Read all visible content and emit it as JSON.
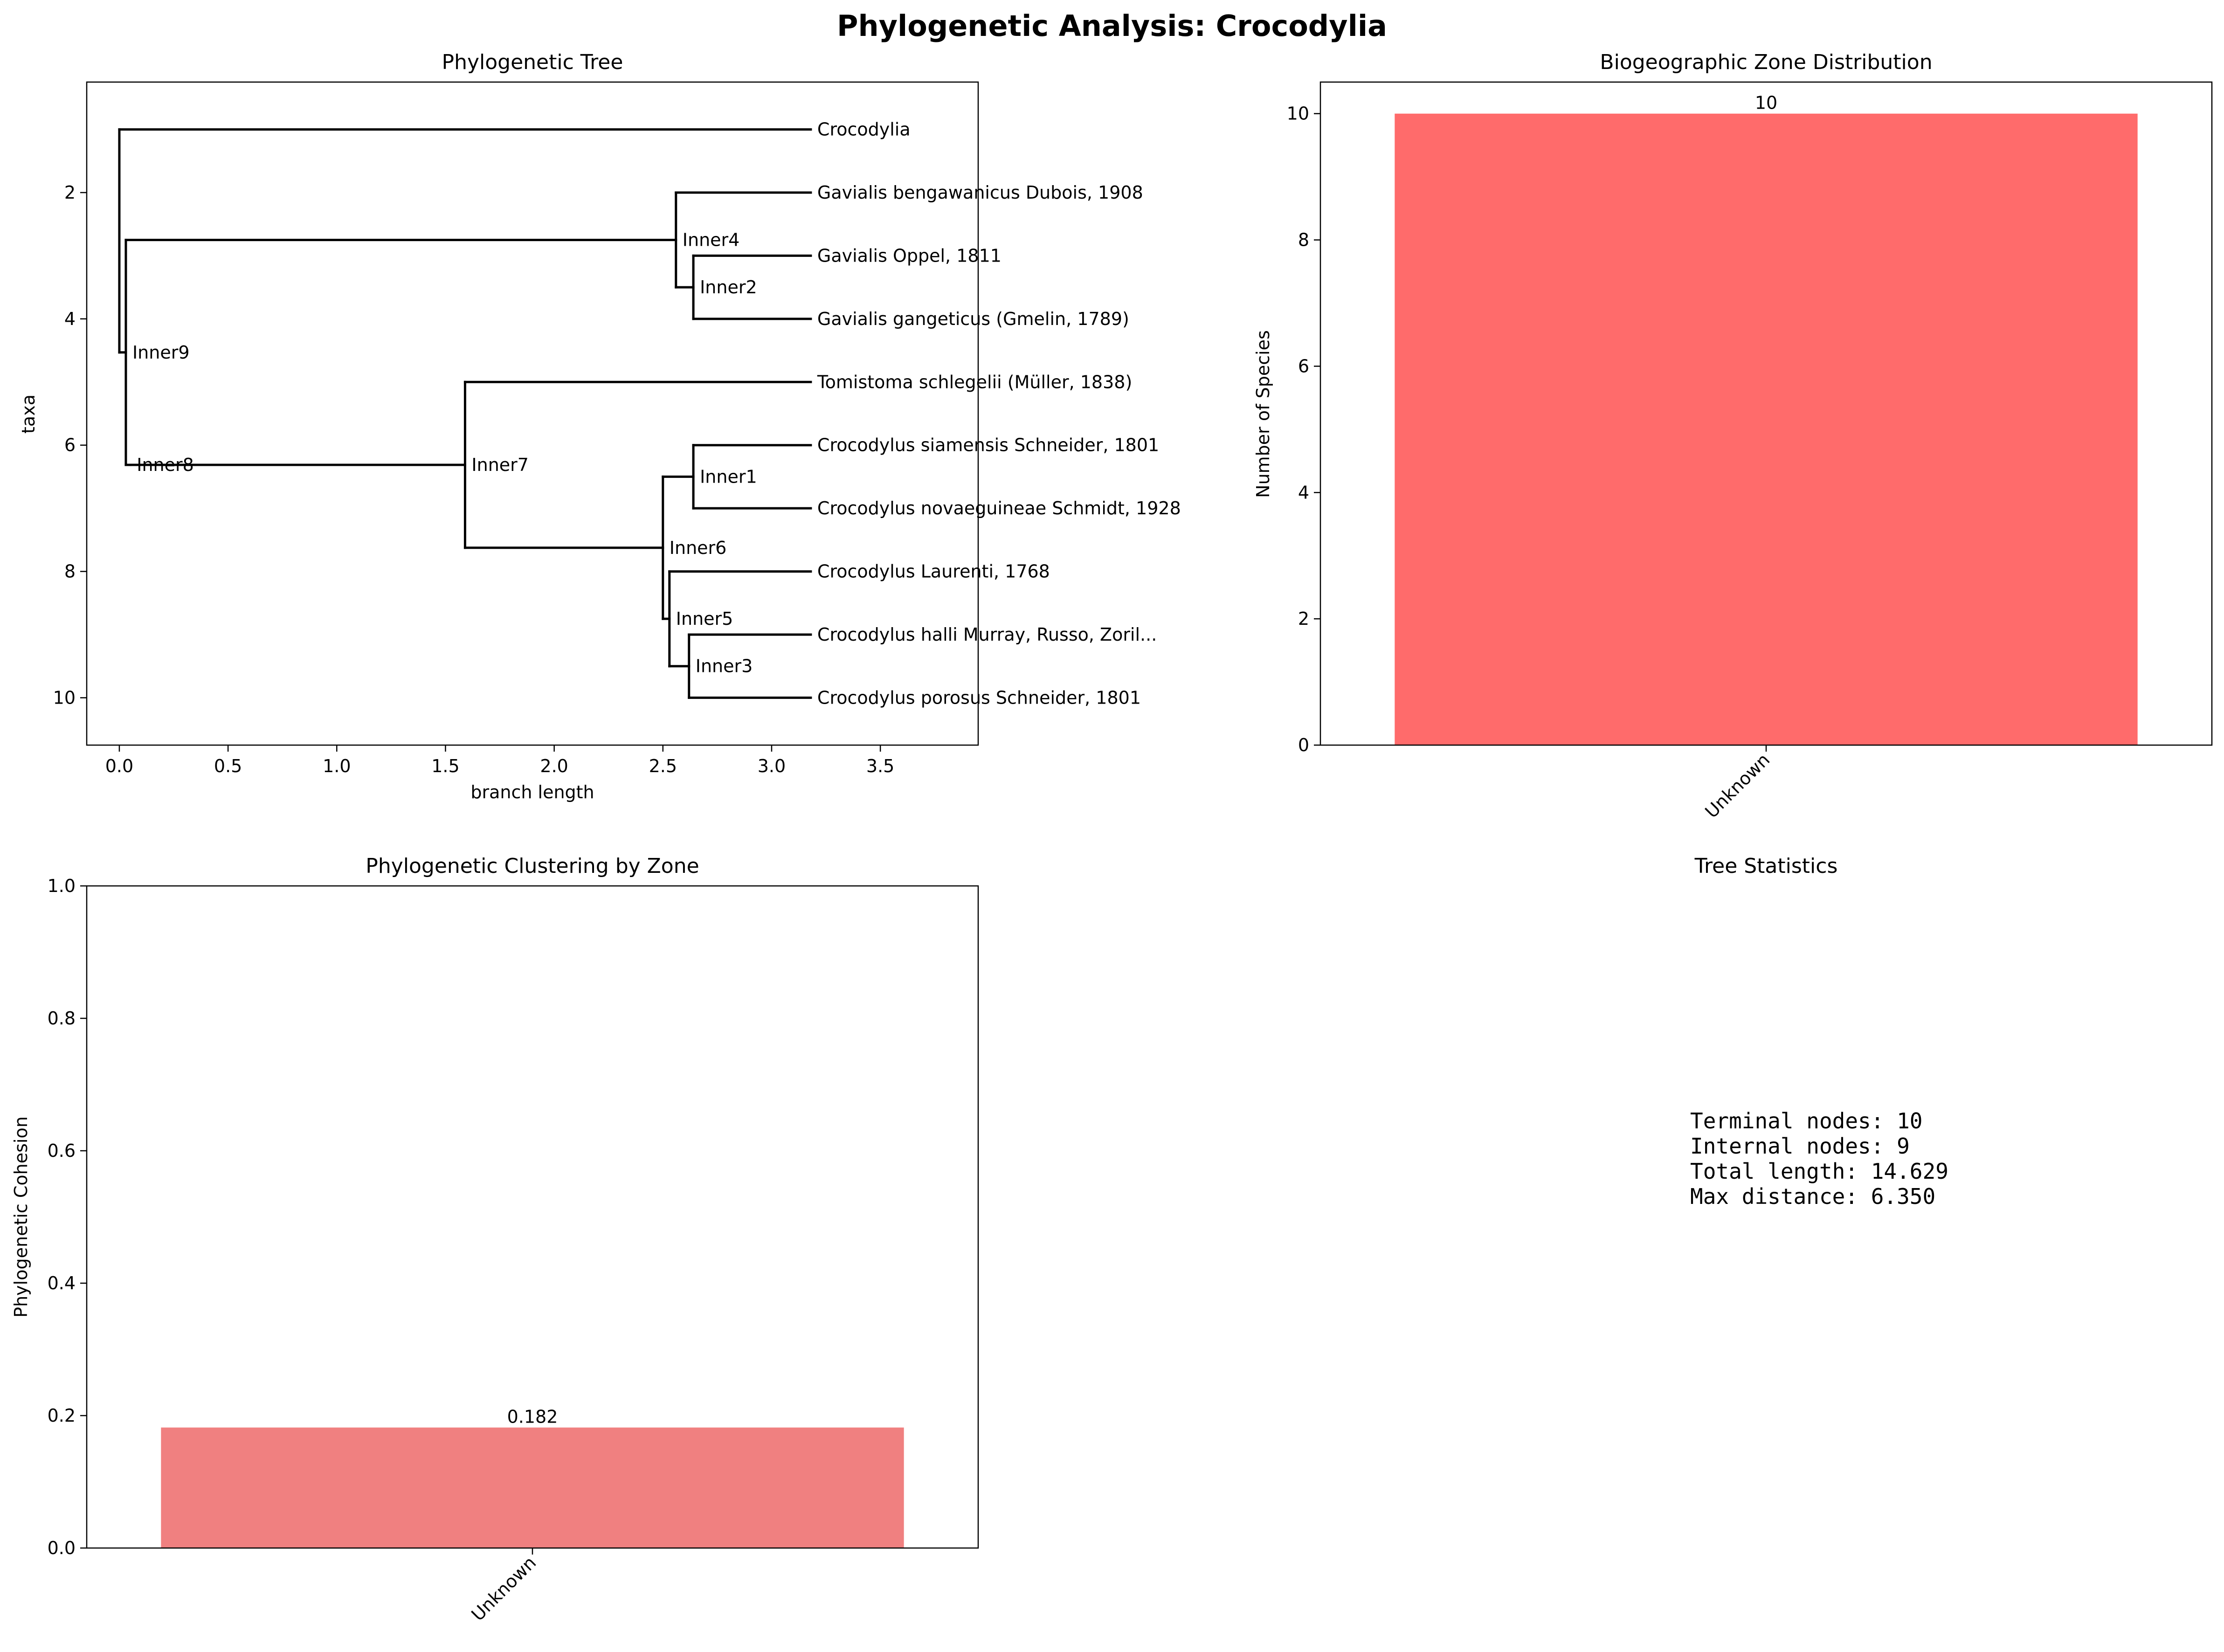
{
  "figure": {
    "title": "Phylogenetic Analysis: Crocodylia"
  },
  "chart_data": [
    {
      "type": "tree",
      "title": "Phylogenetic Tree",
      "xlabel": "branch length",
      "ylabel": "taxa",
      "xlim": [
        -0.15,
        3.95
      ],
      "ylim": [
        10.75,
        0.25
      ],
      "xticks": [
        "0.0",
        "0.5",
        "1.0",
        "1.5",
        "2.0",
        "2.5",
        "3.0",
        "3.5"
      ],
      "yticks": [
        "2",
        "4",
        "6",
        "8",
        "10"
      ],
      "line_color": "#000000",
      "nodes": [
        {
          "id": "root",
          "x": 0.0,
          "y": 0.0,
          "label": ""
        },
        {
          "id": "Inner9",
          "x": 0.03,
          "y": 0.0,
          "label": "Inner9"
        },
        {
          "id": "Inner8",
          "x": 0.05,
          "y": 0.0,
          "label": "Inner8"
        },
        {
          "id": "Inner4",
          "x": 2.56,
          "y": 0.0,
          "label": "Inner4"
        },
        {
          "id": "Inner2",
          "x": 2.64,
          "y": 0.0,
          "label": "Inner2"
        },
        {
          "id": "Inner7",
          "x": 1.59,
          "y": 0.0,
          "label": "Inner7"
        },
        {
          "id": "Inner6",
          "x": 2.5,
          "y": 0.0,
          "label": "Inner6"
        },
        {
          "id": "Inner1",
          "x": 2.64,
          "y": 0.0,
          "label": "Inner1"
        },
        {
          "id": "Inner5",
          "x": 2.53,
          "y": 0.0,
          "label": "Inner5"
        },
        {
          "id": "Inner3",
          "x": 2.62,
          "y": 0.0,
          "label": "Inner3"
        }
      ],
      "leaves": [
        {
          "name": "Crocodylia",
          "x": 3.18,
          "y": 1
        },
        {
          "name": "Gavialis bengawanicus Dubois, 1908",
          "x": 3.18,
          "y": 2
        },
        {
          "name": "Gavialis Oppel, 1811",
          "x": 3.18,
          "y": 3
        },
        {
          "name": "Gavialis gangeticus (Gmelin, 1789)",
          "x": 3.18,
          "y": 4
        },
        {
          "name": "Tomistoma schlegelii (Müller, 1838)",
          "x": 3.18,
          "y": 5
        },
        {
          "name": "Crocodylus siamensis Schneider, 1801",
          "x": 3.18,
          "y": 6
        },
        {
          "name": "Crocodylus novaeguineae Schmidt, 1928",
          "x": 3.18,
          "y": 7
        },
        {
          "name": "Crocodylus Laurenti, 1768",
          "x": 3.18,
          "y": 8
        },
        {
          "name": "Crocodylus halli Murray, Russo, Zoril...",
          "x": 3.18,
          "y": 9
        },
        {
          "name": "Crocodylus porosus Schneider, 1801",
          "x": 3.18,
          "y": 10
        }
      ]
    },
    {
      "type": "bar",
      "title": "Biogeographic Zone Distribution",
      "xlabel": "",
      "ylabel": "Number of Species",
      "categories": [
        "Unknown"
      ],
      "values": [
        10
      ],
      "data_labels": [
        "10"
      ],
      "ylim": [
        0,
        10.5
      ],
      "yticks": [
        0,
        2,
        4,
        6,
        8,
        10
      ],
      "color": "#ff6b6b"
    },
    {
      "type": "bar",
      "title": "Phylogenetic Clustering by Zone",
      "xlabel": "",
      "ylabel": "Phylogenetic Cohesion",
      "categories": [
        "Unknown"
      ],
      "values": [
        0.182
      ],
      "data_labels": [
        "0.182"
      ],
      "ylim": [
        0,
        1.0
      ],
      "yticks": [
        "0.0",
        "0.2",
        "0.4",
        "0.6",
        "0.8",
        "1.0"
      ],
      "color": "#f08080"
    }
  ],
  "stats": {
    "title": "Tree Statistics",
    "lines": [
      "Terminal nodes: 10",
      "Internal nodes: 9",
      "Total length: 14.629",
      "Max distance: 6.350"
    ]
  }
}
